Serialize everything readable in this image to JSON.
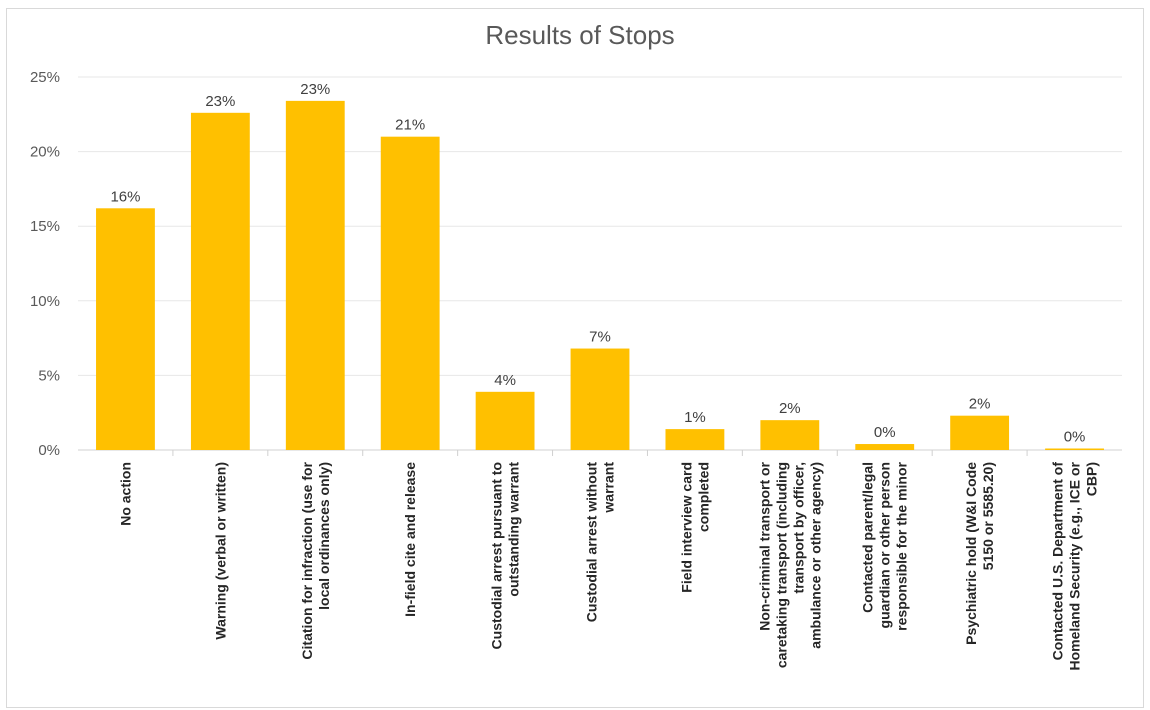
{
  "chart_data": {
    "type": "bar",
    "title": "Results of Stops",
    "xlabel": "",
    "ylabel": "",
    "ylim": [
      0,
      25
    ],
    "y_ticks": [
      "0%",
      "5%",
      "10%",
      "15%",
      "20%",
      "25%"
    ],
    "grid": true,
    "legend": "none",
    "bar_color": "#FFC000",
    "categories": [
      [
        "No action"
      ],
      [
        "Warning (verbal or written)"
      ],
      [
        "Citation for infraction (use for",
        "local ordinances only)"
      ],
      [
        "In-field cite and release"
      ],
      [
        "Custodial arrest pursuant to",
        "outstanding warrant"
      ],
      [
        "Custodial arrest without",
        "warrant"
      ],
      [
        "Field interview card",
        "completed"
      ],
      [
        "Non-criminal transport or",
        "caretaking transport (including",
        "transport by officer,",
        "ambulance or other agency)"
      ],
      [
        "Contacted parent/legal",
        "guardian or other person",
        "responsible for the minor"
      ],
      [
        "Psychiatric hold (W&I Code",
        "5150 or 5585.20)"
      ],
      [
        "Contacted U.S. Department of",
        "Homeland Security (e.g., ICE or",
        "CBP)"
      ]
    ],
    "values": [
      16.2,
      22.6,
      23.4,
      21.0,
      3.9,
      6.8,
      1.4,
      2.0,
      0.4,
      2.3,
      0.1
    ],
    "data_labels": [
      "16%",
      "23%",
      "23%",
      "21%",
      "4%",
      "7%",
      "1%",
      "2%",
      "0%",
      "2%",
      "0%"
    ]
  }
}
